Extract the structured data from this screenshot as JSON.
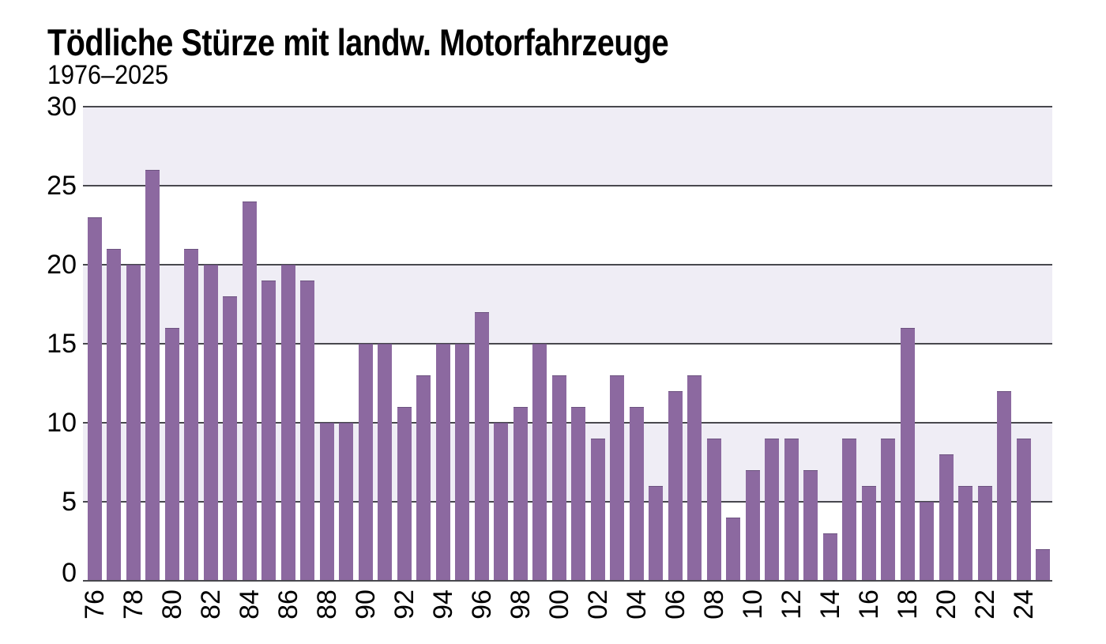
{
  "header": {
    "title": "Tödliche Stürze mit landw. Motorfahrzeuge",
    "subtitle": "1976–2025"
  },
  "colors": {
    "bar": "#8c69a0",
    "bar_top_edge": "#6d5380",
    "band": "#efedf5",
    "gridline": "#48484e",
    "text": "#000000",
    "background": "#ffffff"
  },
  "chart_data": {
    "type": "bar",
    "title": "Tödliche Stürze mit landw. Motorfahrzeuge",
    "subtitle": "1976–2025",
    "xlabel": "",
    "ylabel": "",
    "ylim": [
      0,
      30
    ],
    "yticks": [
      0,
      5,
      10,
      15,
      20,
      25,
      30
    ],
    "shaded_bands": [
      [
        5,
        10
      ],
      [
        15,
        20
      ],
      [
        25,
        30
      ]
    ],
    "grid": "horizontal",
    "legend_position": "none",
    "x_tick_labels": [
      "76",
      "78",
      "80",
      "82",
      "84",
      "86",
      "88",
      "90",
      "92",
      "94",
      "96",
      "98",
      "00",
      "02",
      "04",
      "06",
      "08",
      "10",
      "12",
      "14",
      "16",
      "18",
      "20",
      "22",
      "24"
    ],
    "categories": [
      1976,
      1977,
      1978,
      1979,
      1980,
      1981,
      1982,
      1983,
      1984,
      1985,
      1986,
      1987,
      1988,
      1989,
      1990,
      1991,
      1992,
      1993,
      1994,
      1995,
      1996,
      1997,
      1998,
      1999,
      2000,
      2001,
      2002,
      2003,
      2004,
      2005,
      2006,
      2007,
      2008,
      2009,
      2010,
      2011,
      2012,
      2013,
      2014,
      2015,
      2016,
      2017,
      2018,
      2019,
      2020,
      2021,
      2022,
      2023,
      2024,
      2025
    ],
    "values": [
      23,
      21,
      20,
      26,
      16,
      21,
      20,
      18,
      24,
      19,
      20,
      19,
      10,
      10,
      15,
      15,
      11,
      13,
      15,
      15,
      17,
      10,
      11,
      15,
      13,
      11,
      9,
      13,
      11,
      6,
      12,
      13,
      9,
      4,
      7,
      9,
      9,
      7,
      3,
      9,
      6,
      9,
      16,
      5,
      8,
      6,
      6,
      12,
      9,
      2
    ]
  }
}
